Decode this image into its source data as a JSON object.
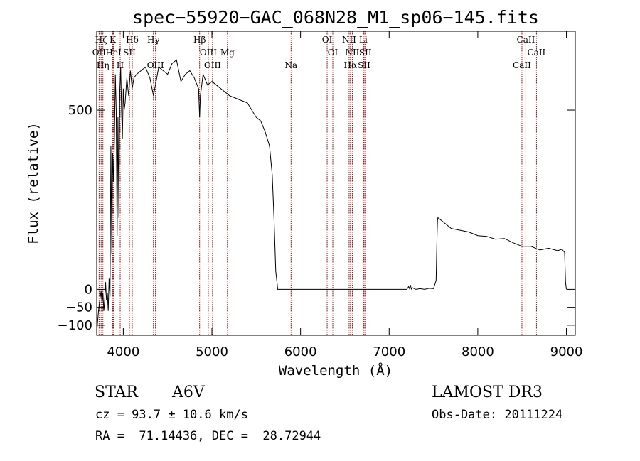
{
  "chart_data": {
    "type": "line",
    "title": "spec−55920−GAC_068N28_M1_sp06−145.fits",
    "xlabel": "Wavelength (Å)",
    "ylabel": "Flux (relative)",
    "xlim": [
      3700,
      9100
    ],
    "ylim": [
      -128,
      720
    ],
    "x_ticks": [
      4000,
      5000,
      6000,
      7000,
      8000,
      9000
    ],
    "y_ticks": [
      {
        "value": 500,
        "label": "500"
      },
      {
        "value": 0,
        "label": "0"
      },
      {
        "value": -50,
        "label": "−50"
      },
      {
        "value": -100,
        "label": "−100"
      }
    ],
    "series": [
      {
        "name": "spectrum",
        "x": [
          3700,
          3720,
          3740,
          3750,
          3760,
          3770,
          3780,
          3790,
          3800,
          3810,
          3820,
          3830,
          3840,
          3850,
          3860,
          3870,
          3880,
          3890,
          3900,
          3910,
          3920,
          3930,
          3940,
          3950,
          3960,
          3970,
          3980,
          3990,
          4000,
          4010,
          4020,
          4040,
          4060,
          4080,
          4100,
          4120,
          4150,
          4200,
          4250,
          4300,
          4340,
          4400,
          4450,
          4500,
          4550,
          4600,
          4650,
          4700,
          4750,
          4800,
          4850,
          4861,
          4870,
          4900,
          4950,
          5000,
          5100,
          5200,
          5300,
          5400,
          5500,
          5550,
          5600,
          5650,
          5680,
          5700,
          5720,
          5740,
          5742,
          5800,
          6000,
          6200,
          6400,
          6600,
          6800,
          7000,
          7200,
          7220,
          7230,
          7240,
          7250,
          7260,
          7300,
          7350,
          7400,
          7450,
          7500,
          7530,
          7540,
          7545,
          7550,
          7600,
          7650,
          7700,
          7800,
          7900,
          8000,
          8100,
          8200,
          8300,
          8400,
          8500,
          8600,
          8700,
          8800,
          8900,
          8950,
          8980,
          8990,
          9000
        ],
        "y": [
          -120,
          -60,
          -20,
          -5,
          -40,
          -10,
          -60,
          -30,
          20,
          -30,
          -10,
          -60,
          30,
          -20,
          400,
          100,
          380,
          300,
          420,
          600,
          500,
          150,
          480,
          200,
          550,
          620,
          500,
          420,
          560,
          500,
          520,
          590,
          540,
          610,
          560,
          590,
          600,
          610,
          620,
          590,
          540,
          620,
          610,
          600,
          630,
          640,
          580,
          600,
          610,
          590,
          560,
          480,
          540,
          600,
          570,
          580,
          560,
          540,
          530,
          520,
          480,
          470,
          440,
          400,
          320,
          200,
          50,
          8,
          0,
          0,
          0,
          0,
          0,
          0,
          0,
          0,
          0,
          8,
          2,
          12,
          1,
          5,
          0,
          2,
          0,
          3,
          2,
          25,
          150,
          190,
          200,
          190,
          180,
          170,
          165,
          160,
          150,
          148,
          140,
          142,
          130,
          120,
          120,
          110,
          115,
          108,
          112,
          103,
          20,
          0
        ]
      }
    ],
    "spectral_lines": [
      {
        "label": "Hζ",
        "x": 3750
      },
      {
        "label": "OII",
        "x": 3727
      },
      {
        "label": "Hη",
        "x": 3770
      },
      {
        "label": "K",
        "x": 3880
      },
      {
        "label": "HeI",
        "x": 3889
      },
      {
        "label": "H",
        "x": 3965
      },
      {
        "label": "Hδ",
        "x": 4101
      },
      {
        "label": "SII",
        "x": 4069
      },
      {
        "label": "OIII",
        "x": 4363
      },
      {
        "label": "Hγ",
        "x": 4340
      },
      {
        "label": "OIII",
        "x": 4959
      },
      {
        "label": "OIII",
        "x": 5007
      },
      {
        "label": "Hβ",
        "x": 4861
      },
      {
        "label": "Mg",
        "x": 5175
      },
      {
        "label": "Na",
        "x": 5893
      },
      {
        "label": "OI",
        "x": 6300
      },
      {
        "label": "OI",
        "x": 6364
      },
      {
        "label": "Hα",
        "x": 6563
      },
      {
        "label": "NII",
        "x": 6548
      },
      {
        "label": "NII",
        "x": 6584
      },
      {
        "label": "SII",
        "x": 6717
      },
      {
        "label": "Li",
        "x": 6708
      },
      {
        "label": "SII",
        "x": 6731
      },
      {
        "label": "CaII",
        "x": 8498
      },
      {
        "label": "CaII",
        "x": 8542
      },
      {
        "label": "CaII",
        "x": 8662
      }
    ],
    "grid": false
  },
  "info": {
    "class": "STAR",
    "subclass": "A6V",
    "survey": "LAMOST DR3",
    "cz": "cz = 93.7 ± 10.6 km/s",
    "obs_date": "Obs-Date: 20111224",
    "radec": "RA =  71.14436, DEC =  28.72944"
  },
  "colors": {
    "line": "#000000",
    "marker": "#b00000",
    "background": "#ffffff"
  }
}
